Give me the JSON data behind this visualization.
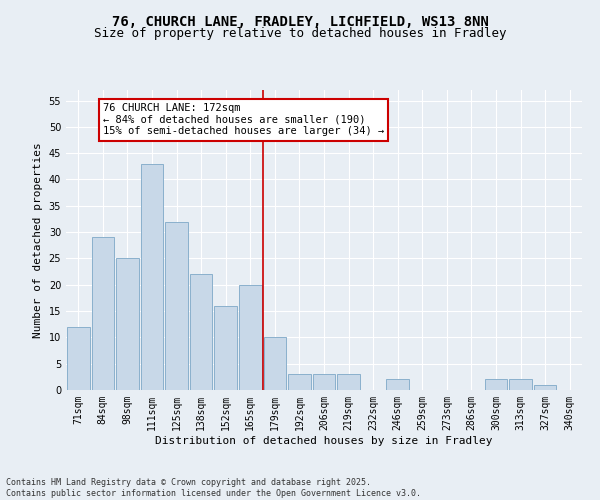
{
  "title_line1": "76, CHURCH LANE, FRADLEY, LICHFIELD, WS13 8NN",
  "title_line2": "Size of property relative to detached houses in Fradley",
  "xlabel": "Distribution of detached houses by size in Fradley",
  "ylabel": "Number of detached properties",
  "bar_labels": [
    "71sqm",
    "84sqm",
    "98sqm",
    "111sqm",
    "125sqm",
    "138sqm",
    "152sqm",
    "165sqm",
    "179sqm",
    "192sqm",
    "206sqm",
    "219sqm",
    "232sqm",
    "246sqm",
    "259sqm",
    "273sqm",
    "286sqm",
    "300sqm",
    "313sqm",
    "327sqm",
    "340sqm"
  ],
  "bar_values": [
    12,
    29,
    25,
    43,
    32,
    22,
    16,
    20,
    10,
    3,
    3,
    3,
    0,
    2,
    0,
    0,
    0,
    2,
    2,
    1,
    0
  ],
  "bar_color": "#c8d8e8",
  "bar_edgecolor": "#8ab0cc",
  "vline_index": 8,
  "vline_color": "#cc0000",
  "annotation_text": "76 CHURCH LANE: 172sqm\n← 84% of detached houses are smaller (190)\n15% of semi-detached houses are larger (34) →",
  "annotation_box_color": "#ffffff",
  "annotation_box_edgecolor": "#cc0000",
  "ylim": [
    0,
    57
  ],
  "yticks": [
    0,
    5,
    10,
    15,
    20,
    25,
    30,
    35,
    40,
    45,
    50,
    55
  ],
  "background_color": "#e8eef4",
  "grid_color": "#ffffff",
  "footer_text": "Contains HM Land Registry data © Crown copyright and database right 2025.\nContains public sector information licensed under the Open Government Licence v3.0.",
  "title_fontsize": 10,
  "subtitle_fontsize": 9,
  "axis_label_fontsize": 8,
  "tick_fontsize": 7,
  "annotation_fontsize": 7.5,
  "footer_fontsize": 6
}
